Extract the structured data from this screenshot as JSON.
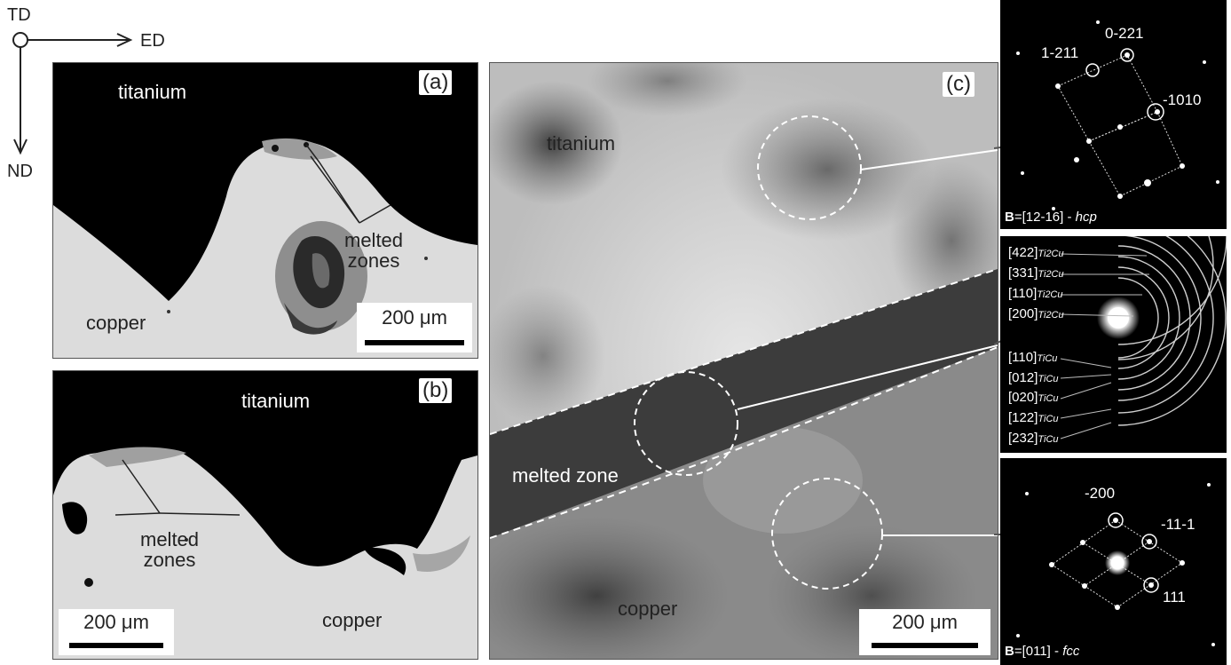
{
  "axes": {
    "td": "TD",
    "ed": "ED",
    "nd": "ND"
  },
  "panel_a": {
    "tag": "(a)",
    "top_label": "titanium",
    "bottom_label": "copper",
    "annotation": "melted\nzones",
    "scale": "200 μm"
  },
  "panel_b": {
    "tag": "(b)",
    "top_label": "titanium",
    "bottom_label": "copper",
    "annotation": "melted\nzones",
    "scale": "200 μm"
  },
  "panel_c": {
    "tag": "(c)",
    "top_label": "titanium",
    "middle_label": "melted zone",
    "bottom_label": "copper",
    "scale": "200 μm"
  },
  "diffraction_top": {
    "spots": [
      "1-211",
      "0-221",
      "-1010"
    ],
    "zone_axis_bold": "B",
    "zone_axis_value": "=[12-16] - ",
    "zone_axis_italic": "hcp"
  },
  "diffraction_mid": {
    "rings": [
      {
        "index": "[422]",
        "phase": "Ti2Cu"
      },
      {
        "index": "[331]",
        "phase": "Ti2Cu"
      },
      {
        "index": "[110]",
        "phase": "Ti2Cu"
      },
      {
        "index": "[200]",
        "phase": "Ti2Cu"
      },
      {
        "index": "[110]",
        "phase": "TiCu"
      },
      {
        "index": "[012]",
        "phase": "TiCu"
      },
      {
        "index": "[020]",
        "phase": "TiCu"
      },
      {
        "index": "[122]",
        "phase": "TiCu"
      },
      {
        "index": "[232]",
        "phase": "TiCu"
      }
    ]
  },
  "diffraction_bot": {
    "spots": [
      "-200",
      "-11-1",
      "111"
    ],
    "zone_axis_bold": "B",
    "zone_axis_value": "=[011] - ",
    "zone_axis_italic": "fcc"
  },
  "colors": {
    "dark": "#000000",
    "light_metal": "#dedede",
    "melted": "#9a9a9a",
    "tem_bright": "#d8d8d8",
    "tem_dark": "#4a4a4a"
  }
}
